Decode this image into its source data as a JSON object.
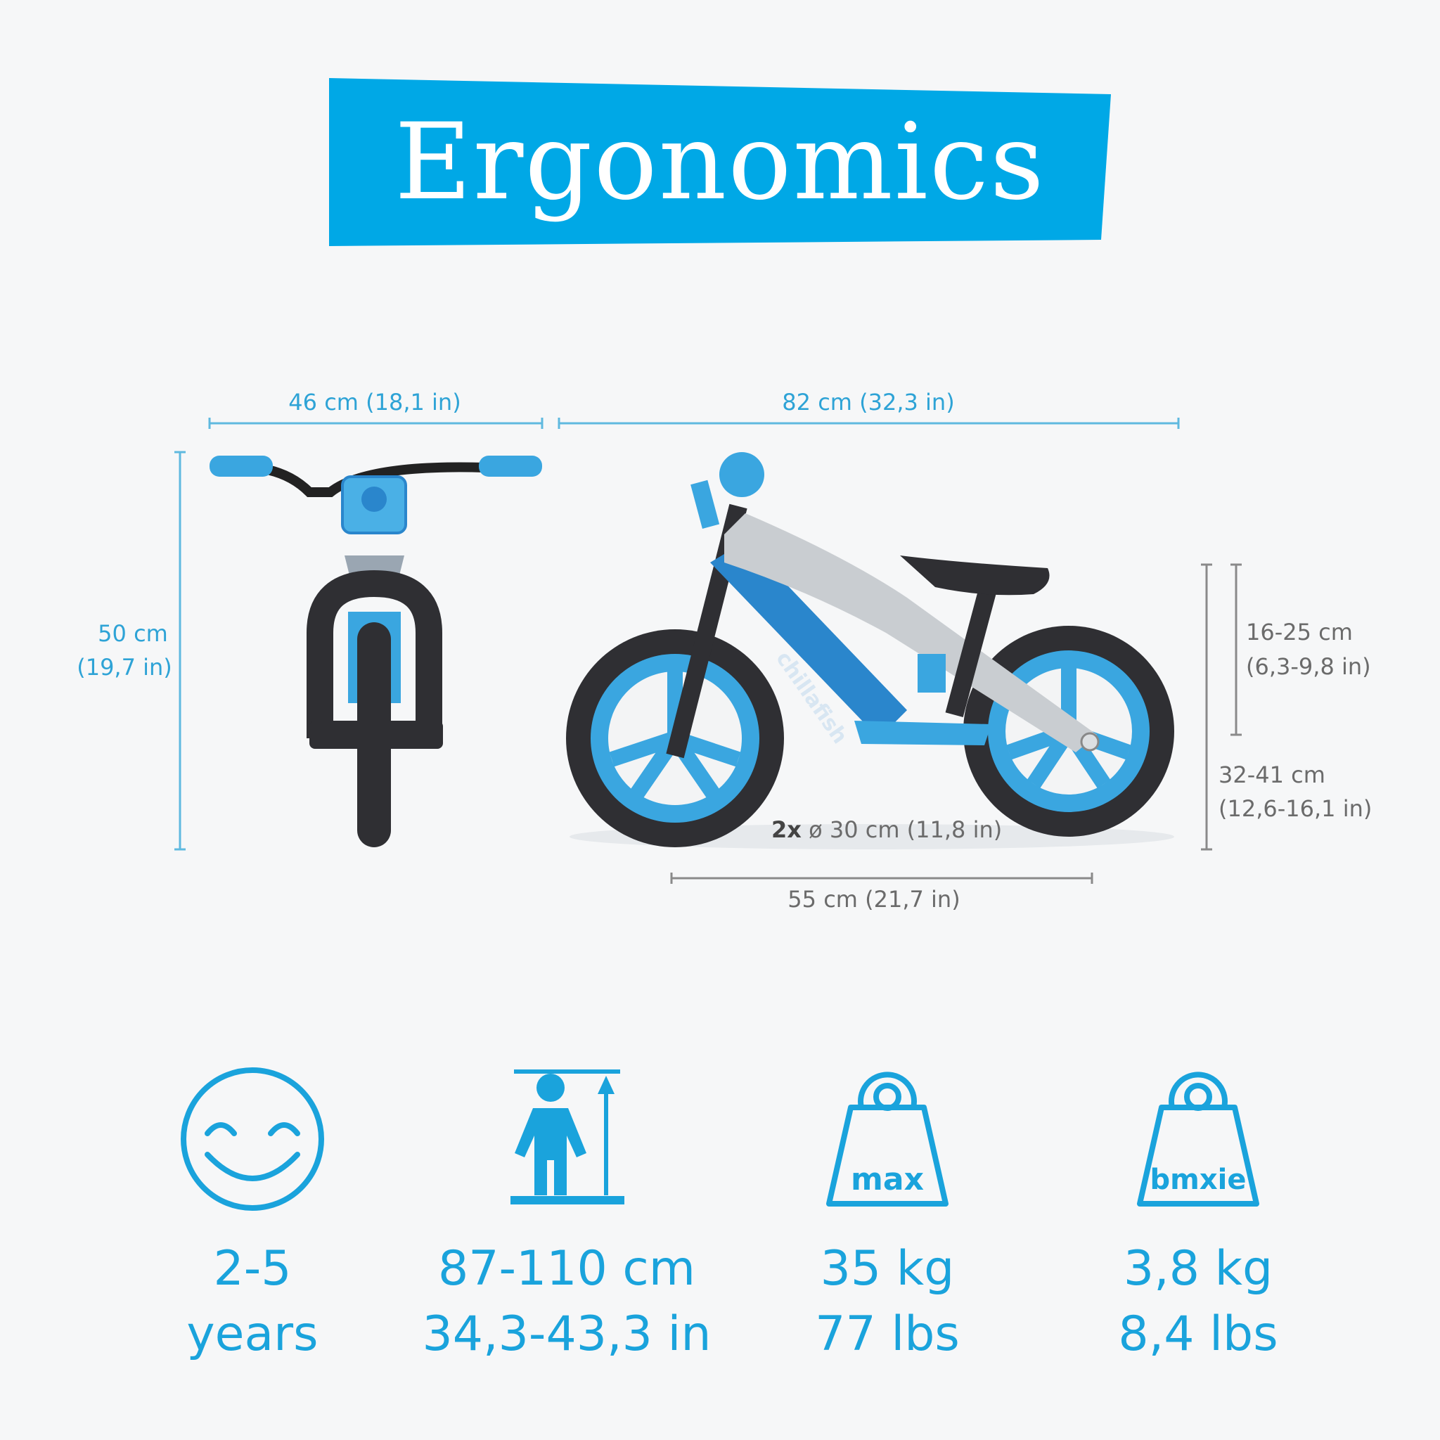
{
  "header": {
    "title": "Ergonomics"
  },
  "colors": {
    "accent": "#00a8e6",
    "dimension_blue": "#2ea3d6",
    "dimension_grey": "#6b6b6b",
    "tire": "#2f2f33",
    "frame": "#2a86cc"
  },
  "dimensions": {
    "front_width": "46 cm (18,1 in)",
    "length": "82 cm (32,3 in)",
    "height_cm": "50 cm",
    "height_in": "(19,7 in)",
    "saddle_adjust_cm": "16-25 cm",
    "saddle_adjust_in": "(6,3-9,8 in)",
    "saddle_height_cm": "32-41 cm",
    "saddle_height_in": "(12,6-16,1 in)",
    "wheel_prefix": "2x",
    "wheel_size": "ø 30 cm (11,8 in)",
    "wheelbase": "55 cm (21,7 in)"
  },
  "bike": {
    "brand": "chillafish"
  },
  "specs": [
    {
      "icon": "smiley-icon",
      "line1": "2-5",
      "line2": "years"
    },
    {
      "icon": "child-height-icon",
      "line1": "87-110 cm",
      "line2": "34,3-43,3 in"
    },
    {
      "icon": "weight-max-icon",
      "label": "max",
      "line1": "35 kg",
      "line2": "77 lbs"
    },
    {
      "icon": "weight-bike-icon",
      "label": "bmxie",
      "line1": "3,8 kg",
      "line2": "8,4 lbs"
    }
  ]
}
